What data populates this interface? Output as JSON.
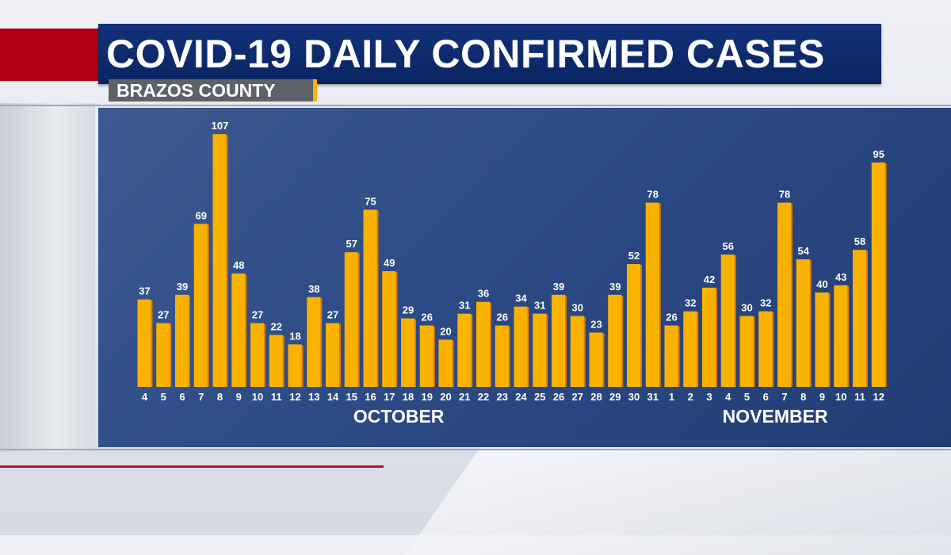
{
  "header": {
    "title": "COVID-19 DAILY CONFIRMED CASES",
    "subtitle": "BRAZOS COUNTY"
  },
  "colors": {
    "bar_fill": "#f9b200",
    "bar_shadow": "#e07a00",
    "panel_blue": "#2c4a85",
    "title_blue": "#0a2461",
    "accent_red": "#b00012"
  },
  "chart_data": {
    "type": "bar",
    "title": "COVID-19 DAILY CONFIRMED CASES",
    "subtitle": "BRAZOS COUNTY",
    "xlabel": "",
    "ylabel": "",
    "ylim": [
      0,
      110
    ],
    "grid": false,
    "categories": [
      "4",
      "5",
      "6",
      "7",
      "8",
      "9",
      "10",
      "11",
      "12",
      "13",
      "14",
      "15",
      "16",
      "17",
      "18",
      "19",
      "20",
      "21",
      "22",
      "23",
      "24",
      "25",
      "26",
      "27",
      "28",
      "29",
      "30",
      "31",
      "1",
      "2",
      "3",
      "4",
      "5",
      "6",
      "7",
      "8",
      "9",
      "10",
      "11",
      "12"
    ],
    "values": [
      37,
      27,
      39,
      69,
      107,
      48,
      27,
      22,
      18,
      38,
      27,
      57,
      75,
      49,
      29,
      26,
      20,
      31,
      36,
      26,
      34,
      31,
      39,
      30,
      23,
      39,
      52,
      78,
      26,
      32,
      42,
      56,
      30,
      32,
      78,
      54,
      40,
      43,
      58,
      95
    ],
    "month_labels": [
      {
        "label": "OCTOBER",
        "category_range": [
          0,
          27
        ]
      },
      {
        "label": "NOVEMBER",
        "category_range": [
          28,
          39
        ]
      }
    ]
  }
}
